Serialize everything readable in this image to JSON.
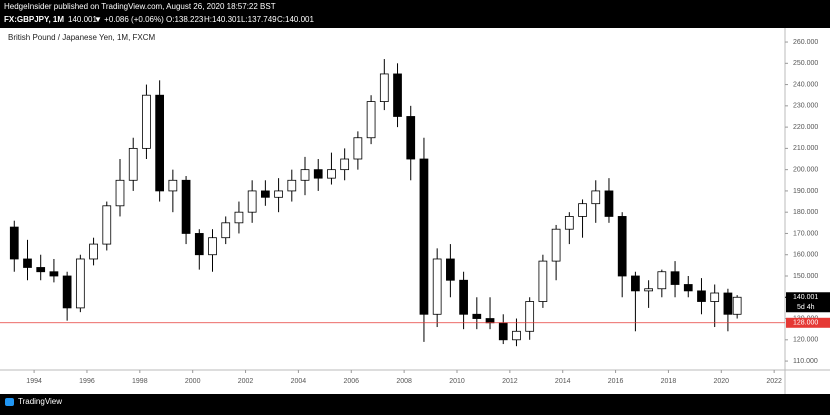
{
  "header": {
    "publisher": "HedgeInsider published on TradingView.com, August 26, 2020 18:57:22 BST",
    "symbol": "FX:GBPJPY, 1M",
    "price": "140.001",
    "change": "▼ +0.086 (+0.06%)",
    "open": "O:138.223",
    "high": "H:140.301",
    "low": "L:137.749",
    "close": "C:140.001"
  },
  "footer": {
    "brand": "TradingView"
  },
  "chart_data": {
    "type": "candlestick",
    "title": "British Pound / Japanese Yen, 1M, FXCM",
    "x": [
      1993.25,
      1993.75,
      1994.25,
      1994.75,
      1995.25,
      1995.75,
      1996.25,
      1996.75,
      1997.25,
      1997.75,
      1998.25,
      1998.75,
      1999.25,
      1999.75,
      2000.25,
      2000.75,
      2001.25,
      2001.75,
      2002.25,
      2002.75,
      2003.25,
      2003.75,
      2004.25,
      2004.75,
      2005.25,
      2005.75,
      2006.25,
      2006.75,
      2007.25,
      2007.75,
      2008.25,
      2008.75,
      2009.25,
      2009.75,
      2010.25,
      2010.75,
      2011.25,
      2011.75,
      2012.25,
      2012.75,
      2013.25,
      2013.75,
      2014.25,
      2014.75,
      2015.25,
      2015.75,
      2016.25,
      2016.75,
      2017.25,
      2017.75,
      2018.25,
      2018.75,
      2019.25,
      2019.75,
      2020.25,
      2020.6
    ],
    "open": [
      173,
      158,
      154,
      152,
      150,
      135,
      158,
      165,
      183,
      195,
      210,
      235,
      190,
      195,
      170,
      160,
      168,
      175,
      180,
      190,
      187,
      190,
      195,
      200,
      196,
      200,
      205,
      215,
      232,
      245,
      225,
      205,
      132,
      158,
      148,
      132,
      130,
      128,
      120,
      124,
      138,
      157,
      172,
      178,
      184,
      190,
      178,
      150,
      143,
      144,
      152,
      146,
      143,
      138,
      142,
      132
    ],
    "high": [
      176,
      167,
      160,
      158,
      152,
      160,
      168,
      185,
      205,
      215,
      240,
      242,
      200,
      197,
      172,
      172,
      178,
      185,
      195,
      195,
      196,
      200,
      206,
      205,
      208,
      210,
      218,
      235,
      252,
      250,
      230,
      215,
      163,
      165,
      152,
      140,
      140,
      132,
      130,
      140,
      160,
      174,
      180,
      186,
      195,
      196,
      180,
      152,
      148,
      153,
      157,
      150,
      149,
      146,
      144,
      141
    ],
    "low": [
      152,
      148,
      148,
      147,
      129,
      133,
      155,
      162,
      178,
      190,
      205,
      185,
      180,
      165,
      153,
      152,
      165,
      170,
      175,
      183,
      180,
      185,
      188,
      190,
      193,
      195,
      200,
      212,
      228,
      220,
      195,
      119,
      126,
      140,
      125,
      125,
      125,
      118,
      117,
      120,
      135,
      148,
      165,
      168,
      175,
      175,
      140,
      124,
      135,
      140,
      140,
      140,
      132,
      126,
      124,
      130
    ],
    "close": [
      158,
      154,
      152,
      150,
      135,
      158,
      165,
      183,
      195,
      210,
      235,
      190,
      195,
      170,
      160,
      168,
      175,
      180,
      190,
      187,
      190,
      195,
      200,
      196,
      200,
      205,
      215,
      232,
      245,
      225,
      205,
      132,
      158,
      148,
      132,
      130,
      128,
      120,
      124,
      138,
      157,
      172,
      178,
      184,
      190,
      178,
      150,
      143,
      144,
      152,
      146,
      143,
      138,
      142,
      132,
      140.001
    ],
    "up_color": "#ffffff",
    "down_color": "#000000",
    "edge_color": "#000000",
    "xlim": [
      1992.71,
      2022.41
    ],
    "ylim": [
      105.8,
      266.6
    ],
    "xticks": [
      1994,
      1996,
      1998,
      2000,
      2002,
      2004,
      2006,
      2008,
      2010,
      2012,
      2014,
      2016,
      2018,
      2020,
      2022
    ],
    "yticks": [
      {
        "value": 110,
        "label": "110.000"
      },
      {
        "value": 120,
        "label": "120.000"
      },
      {
        "value": 130,
        "label": "130.000"
      },
      {
        "value": 140,
        "label": "140.000"
      },
      {
        "value": 150,
        "label": "150.000"
      },
      {
        "value": 160,
        "label": "160.000"
      },
      {
        "value": 170,
        "label": "170.000"
      },
      {
        "value": 180,
        "label": "180.000"
      },
      {
        "value": 190,
        "label": "190.000"
      },
      {
        "value": 200,
        "label": "200.000"
      },
      {
        "value": 210,
        "label": "210.000"
      },
      {
        "value": 220,
        "label": "220.000"
      },
      {
        "value": 230,
        "label": "230.000"
      },
      {
        "value": 240,
        "label": "240.000"
      },
      {
        "value": 250,
        "label": "250.000"
      },
      {
        "value": 260,
        "label": "260.000"
      }
    ],
    "hline": {
      "value": 128,
      "label": "128.000",
      "color": "#e53935"
    },
    "last_price": {
      "value": 140.001,
      "label": "140.001",
      "countdown": "5d 4h"
    }
  }
}
